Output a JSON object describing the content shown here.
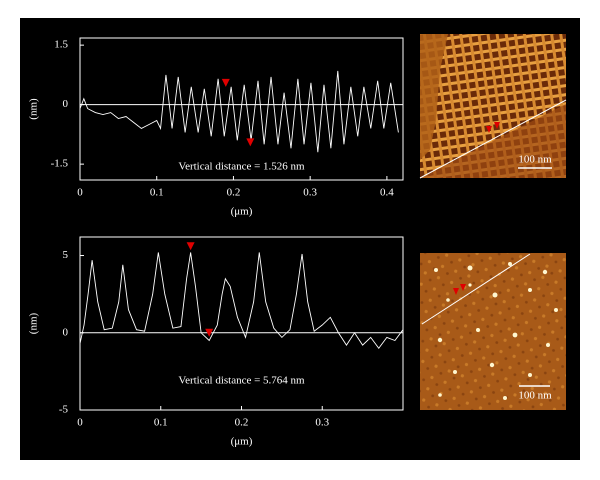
{
  "chart_data": [
    {
      "type": "line",
      "y_label": "(nm)",
      "x_label": "(μm)",
      "annotation": "Vertical distance = 1.526 nm",
      "xlim": [
        0,
        0.421
      ],
      "ylim": [
        -1.9,
        1.68
      ],
      "xticks": [
        0,
        0.1,
        0.2,
        0.3,
        0.4
      ],
      "yticks": [
        -1.5,
        0,
        1.5
      ],
      "hline": 0,
      "series": [
        {
          "color": "#ffffff",
          "x": [
            0,
            0.005,
            0.01,
            0.02,
            0.03,
            0.04,
            0.05,
            0.06,
            0.07,
            0.08,
            0.09,
            0.1,
            0.105,
            0.112,
            0.12,
            0.128,
            0.137,
            0.145,
            0.154,
            0.162,
            0.171,
            0.18,
            0.188,
            0.197,
            0.205,
            0.214,
            0.223,
            0.232,
            0.24,
            0.249,
            0.258,
            0.266,
            0.275,
            0.284,
            0.292,
            0.301,
            0.31,
            0.318,
            0.327,
            0.336,
            0.344,
            0.353,
            0.362,
            0.37,
            0.379,
            0.388,
            0.396,
            0.405,
            0.415
          ],
          "values": [
            -0.1,
            0.15,
            -0.1,
            -0.2,
            -0.25,
            -0.2,
            -0.35,
            -0.3,
            -0.45,
            -0.6,
            -0.5,
            -0.4,
            -0.6,
            0.75,
            -0.6,
            0.7,
            -0.7,
            0.45,
            -0.7,
            0.4,
            -0.8,
            0.65,
            -0.8,
            0.45,
            -0.9,
            0.5,
            -0.9,
            0.6,
            -1.0,
            0.7,
            -1.0,
            0.3,
            -1.1,
            0.65,
            -1.0,
            0.55,
            -1.2,
            0.5,
            -1.1,
            0.85,
            -1.0,
            0.45,
            -0.8,
            0.45,
            -0.6,
            0.6,
            -0.6,
            0.55,
            -0.7
          ]
        }
      ],
      "markers": {
        "color": "#e00000",
        "x": [
          0.19,
          0.222
        ],
        "values": [
          0.55,
          -0.95
        ]
      },
      "image": {
        "scale_label": "100 nm"
      }
    },
    {
      "type": "line",
      "y_label": "(nm)",
      "x_label": "(μm)",
      "annotation": "Vertical distance = 5.764 nm",
      "xlim": [
        0,
        0.4
      ],
      "ylim": [
        -5,
        6.2
      ],
      "xticks": [
        0,
        0.1,
        0.2,
        0.3
      ],
      "yticks": [
        -5,
        0,
        5
      ],
      "hline": 0,
      "series": [
        {
          "color": "#ffffff",
          "x": [
            0,
            0.005,
            0.01,
            0.015,
            0.022,
            0.03,
            0.04,
            0.048,
            0.053,
            0.06,
            0.07,
            0.08,
            0.09,
            0.097,
            0.105,
            0.115,
            0.125,
            0.132,
            0.137,
            0.143,
            0.15,
            0.16,
            0.17,
            0.176,
            0.18,
            0.186,
            0.195,
            0.205,
            0.215,
            0.222,
            0.23,
            0.24,
            0.25,
            0.26,
            0.268,
            0.275,
            0.282,
            0.29,
            0.3,
            0.31,
            0.32,
            0.33,
            0.34,
            0.35,
            0.36,
            0.37,
            0.38,
            0.39,
            0.4
          ],
          "values": [
            -0.7,
            0.5,
            2.5,
            4.7,
            2.0,
            0.2,
            0.3,
            2.0,
            4.4,
            1.5,
            0.2,
            0.1,
            2.5,
            5.2,
            2.5,
            0.3,
            0.4,
            3.5,
            5.2,
            3.0,
            0.0,
            -0.5,
            0.5,
            2.5,
            3.5,
            3.0,
            1.0,
            -0.3,
            2.0,
            5.2,
            2.0,
            0.3,
            -0.3,
            0.2,
            2.5,
            5.1,
            2.0,
            0.1,
            0.5,
            1.0,
            0.0,
            -0.8,
            0.0,
            -0.8,
            -0.3,
            -1.0,
            -0.3,
            -0.5,
            0.2
          ]
        }
      ],
      "markers": {
        "color": "#e00000",
        "x": [
          0.137,
          0.16
        ],
        "values": [
          5.6,
          0.0
        ]
      },
      "image": {
        "scale_label": "100 nm"
      }
    }
  ]
}
